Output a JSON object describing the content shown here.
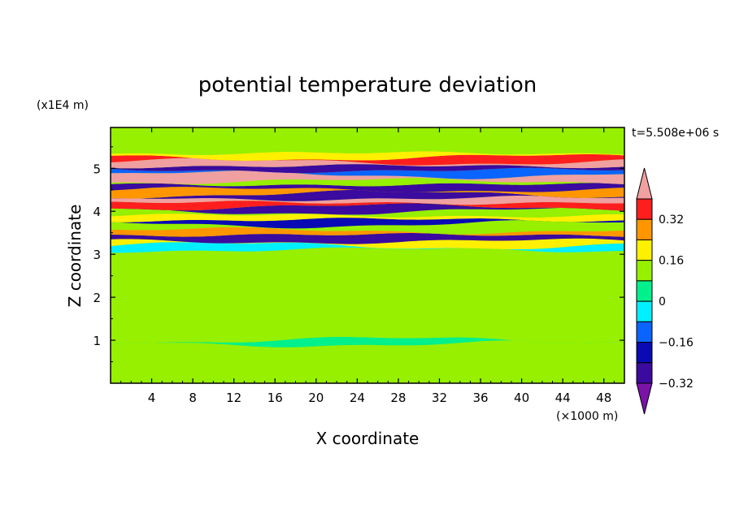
{
  "chart_data": {
    "type": "heatmap",
    "title": "potential temperature deviation",
    "xlabel": "X coordinate",
    "ylabel": "Z coordinate",
    "x_unit_label": "(×1000 m)",
    "y_unit_label": "(x1E4 m)",
    "time_label": "t=5.508e+06 s",
    "xlim": [
      0,
      50
    ],
    "ylim": [
      0,
      5.95
    ],
    "x_ticks": [
      4,
      8,
      12,
      16,
      20,
      24,
      28,
      32,
      36,
      40,
      44,
      48
    ],
    "y_ticks": [
      1,
      2,
      3,
      4,
      5
    ],
    "grid": false,
    "colorbar": {
      "placement": "right",
      "levels": [
        -0.4,
        -0.32,
        -0.24,
        -0.16,
        -0.08,
        0,
        0.08,
        0.16,
        0.24,
        0.32,
        0.4
      ],
      "tick_values": [
        -0.32,
        -0.16,
        0,
        0.16,
        0.32
      ],
      "tick_labels": [
        "−0.32",
        "−0.16",
        "0",
        "0.16",
        "0.32"
      ],
      "colors": [
        "#7a13a6",
        "#3b0a9e",
        "#0a0ab4",
        "#0a64ff",
        "#00f0ff",
        "#00f08c",
        "#96f000",
        "#fff000",
        "#ff9600",
        "#ff1e1e",
        "#f0a0a0"
      ]
    },
    "bands": [
      {
        "z0": 0.0,
        "z1": 0.25,
        "value": 0.0
      },
      {
        "z0": 0.25,
        "z1": 0.45,
        "value": 0.05
      },
      {
        "z0": 0.45,
        "z1": 0.85,
        "value": 0.0
      },
      {
        "z0": 0.85,
        "z1": 0.92,
        "value": 0.05
      },
      {
        "z0": 0.92,
        "z1": 1.0,
        "value": -0.07
      },
      {
        "z0": 1.0,
        "z1": 1.4,
        "value": 0.03
      },
      {
        "z0": 1.4,
        "z1": 1.7,
        "value": 0.0
      },
      {
        "z0": 1.7,
        "z1": 2.0,
        "value": 0.05
      },
      {
        "z0": 2.0,
        "z1": 2.5,
        "value": 0.0
      },
      {
        "z0": 2.5,
        "z1": 2.9,
        "value": 0.05
      },
      {
        "z0": 2.9,
        "z1": 3.1,
        "value": 0.0
      },
      {
        "z0": 3.1,
        "z1": 3.2,
        "value": -0.1
      },
      {
        "z0": 3.2,
        "z1": 3.3,
        "value": 0.1
      },
      {
        "z0": 3.3,
        "z1": 3.45,
        "value": -0.35
      },
      {
        "z0": 3.45,
        "z1": 3.55,
        "value": 0.2
      },
      {
        "z0": 3.55,
        "z1": 3.7,
        "value": 0.0
      },
      {
        "z0": 3.7,
        "z1": 3.8,
        "value": -0.3
      },
      {
        "z0": 3.8,
        "z1": 3.9,
        "value": 0.1
      },
      {
        "z0": 3.9,
        "z1": 4.0,
        "value": 0.0
      },
      {
        "z0": 4.0,
        "z1": 4.1,
        "value": -0.35
      },
      {
        "z0": 4.1,
        "z1": 4.2,
        "value": 0.25
      },
      {
        "z0": 4.2,
        "z1": 4.3,
        "value": 0.35
      },
      {
        "z0": 4.3,
        "z1": 4.4,
        "value": -0.35
      },
      {
        "z0": 4.4,
        "z1": 4.5,
        "value": 0.2
      },
      {
        "z0": 4.5,
        "z1": 4.62,
        "value": -0.4
      },
      {
        "z0": 4.62,
        "z1": 4.7,
        "value": 0.0
      },
      {
        "z0": 4.7,
        "z1": 4.85,
        "value": 0.4
      },
      {
        "z0": 4.85,
        "z1": 4.95,
        "value": -0.2
      },
      {
        "z0": 4.95,
        "z1": 5.05,
        "value": -0.4
      },
      {
        "z0": 5.05,
        "z1": 5.15,
        "value": 0.4
      },
      {
        "z0": 5.15,
        "z1": 5.25,
        "value": 0.25
      },
      {
        "z0": 5.25,
        "z1": 5.35,
        "value": 0.1
      },
      {
        "z0": 5.35,
        "z1": 5.95,
        "value": 0.05
      }
    ]
  }
}
